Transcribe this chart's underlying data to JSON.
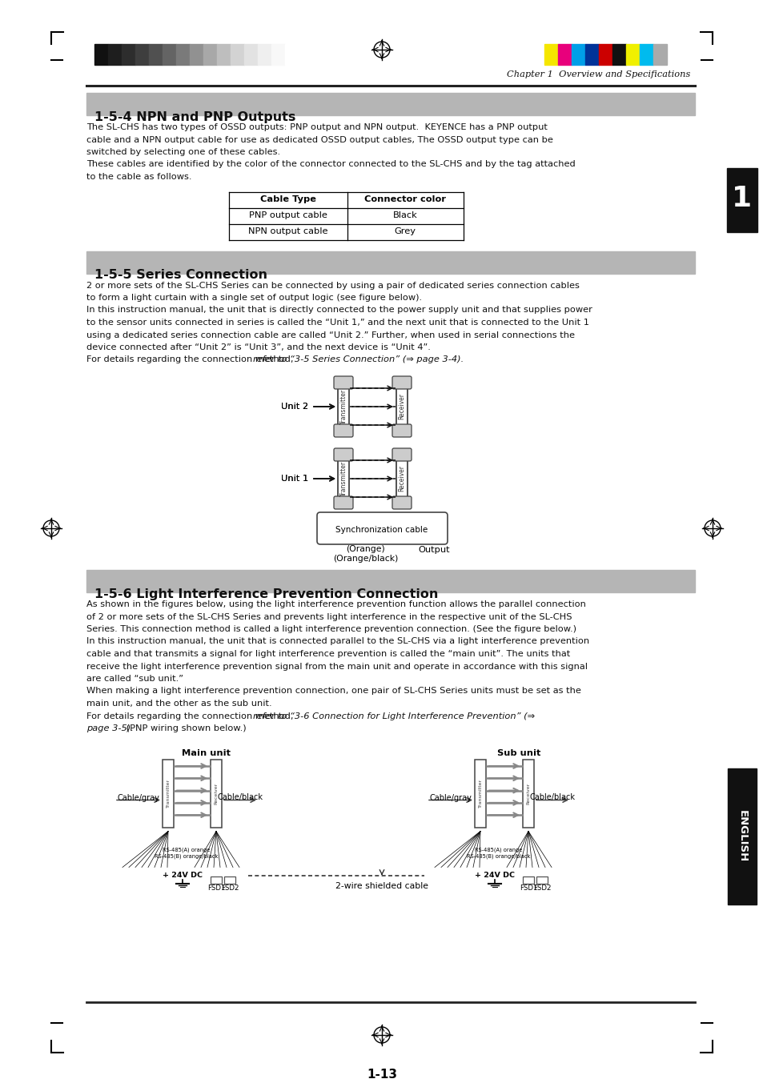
{
  "page_width": 9.54,
  "page_height": 13.53,
  "bg_color": "#ffffff",
  "chapter_header": "Chapter 1  Overview and Specifications",
  "page_number": "1-13",
  "section1_title": "1-5-4 NPN and PNP Outputs",
  "section1_body_lines": [
    "The SL-CHS has two types of OSSD outputs: PNP output and NPN output.  KEYENCE has a PNP output",
    "cable and a NPN output cable for use as dedicated OSSD output cables, The OSSD output type can be",
    "switched by selecting one of these cables.",
    "These cables are identified by the color of the connector connected to the SL-CHS and by the tag attached",
    "to the cable as follows."
  ],
  "table_headers": [
    "Cable Type",
    "Connector color"
  ],
  "table_rows": [
    [
      "PNP output cable",
      "Black"
    ],
    [
      "NPN output cable",
      "Grey"
    ]
  ],
  "section2_title": "1-5-5 Series Connection",
  "section2_body_lines": [
    "2 or more sets of the SL-CHS Series can be connected by using a pair of dedicated series connection cables",
    "to form a light curtain with a single set of output logic (see figure below).",
    "In this instruction manual, the unit that is directly connected to the power supply unit and that supplies power",
    "to the sensor units connected in series is called the “Unit 1,” and the next unit that is connected to the Unit 1",
    "using a dedicated series connection cable are called “Unit 2.” Further, when used in serial connections the",
    "device connected after “Unit 2” is “Unit 3”, and the next device is “Unit 4”.",
    "For details regarding the connection method, |refer to “3-5 Series Connection” (⇒ page 3-4).|"
  ],
  "section3_title": "1-5-6 Light Interference Prevention Connection",
  "section3_body_lines": [
    "As shown in the figures below, using the light interference prevention function allows the parallel connection",
    "of 2 or more sets of the SL-CHS Series and prevents light interference in the respective unit of the SL-CHS",
    "Series. This connection method is called a light interference prevention connection. (See the figure below.)",
    "In this instruction manual, the unit that is connected parallel to the SL-CHS via a light interference prevention",
    "cable and that transmits a signal for light interference prevention is called the “main unit”. The units that",
    "receive the light interference prevention signal from the main unit and operate in accordance with this signal",
    "are called “sub unit.”",
    "When making a light interference prevention connection, one pair of SL-CHS Series units must be set as the",
    "main unit, and the other as the sub unit.",
    "For details regarding the connection method, |refer to “3-6 Connection for Light Interference Prevention” (⇒|",
    "|page 3-5).| (PNP wiring shown below.)"
  ],
  "grayscale_colors": [
    "#111111",
    "#1e1e1e",
    "#2d2d2d",
    "#3e3e3e",
    "#505050",
    "#646464",
    "#7a7a7a",
    "#919191",
    "#a8a8a8",
    "#bebebe",
    "#d3d3d3",
    "#e2e2e2",
    "#efefef",
    "#f8f8f8",
    "#ffffff"
  ],
  "color_swatches": [
    "#f5e600",
    "#e8007c",
    "#009fe8",
    "#003399",
    "#cc0000",
    "#111111",
    "#f0f000",
    "#00bbee",
    "#aaaaaa"
  ]
}
